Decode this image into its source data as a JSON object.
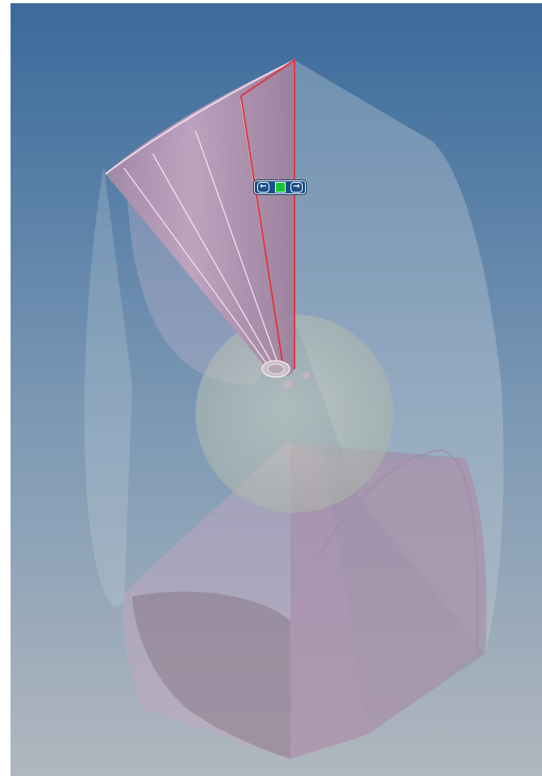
{
  "viewport": {
    "background_top_color": "#3a6a9b",
    "background_bottom_color": "#b1b7be",
    "model_fill_color": "#d7b8cf",
    "selected_edge_color": "#e0353f",
    "glass_body_color": "#c9d3d8",
    "sphere_color": "#d8d7b9"
  },
  "drag_handle": {
    "left_arrow_icon": "arrow-left-icon",
    "center_icon": "square-handle-icon",
    "right_arrow_icon": "arrow-right-icon",
    "left_glyph": "←",
    "right_glyph": "→",
    "center_color": "#18c43a"
  }
}
